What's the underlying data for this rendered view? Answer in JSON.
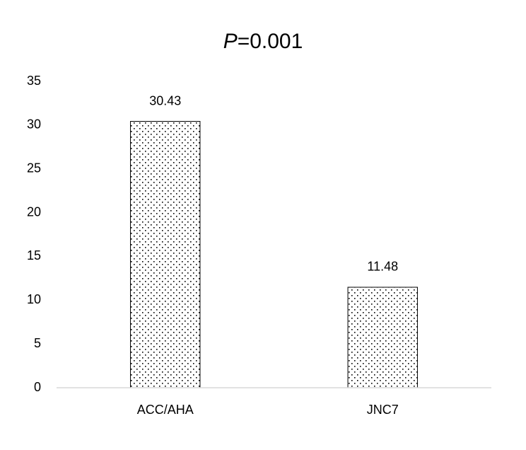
{
  "chart_data": {
    "type": "bar",
    "title": "P=0.001",
    "categories": [
      "ACC/AHA",
      "JNC7"
    ],
    "values": [
      30.43,
      11.48
    ],
    "color": "#000000",
    "ylim": [
      0,
      35
    ],
    "yticks": [
      0,
      5,
      10,
      15,
      20,
      25,
      30,
      35
    ],
    "grid": false
  }
}
